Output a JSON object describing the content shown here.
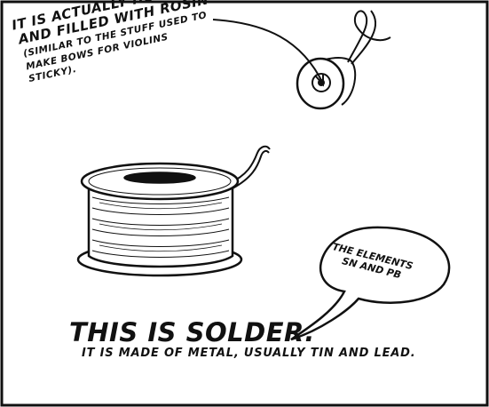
{
  "rosin_caption": {
    "line1": "It is actually hollow",
    "line2": "and filled with rosin",
    "note1": "(similar to the stuff used to",
    "note2": "make bows for violins",
    "note3": "sticky)."
  },
  "bubble": {
    "line1": "The elements",
    "line2": "Sn and Pb"
  },
  "main_caption": {
    "title": "This is solder.",
    "subtitle": "It is made of metal, usually tin and lead."
  },
  "colors": {
    "ink": "#111111",
    "paper": "#ffffff"
  }
}
